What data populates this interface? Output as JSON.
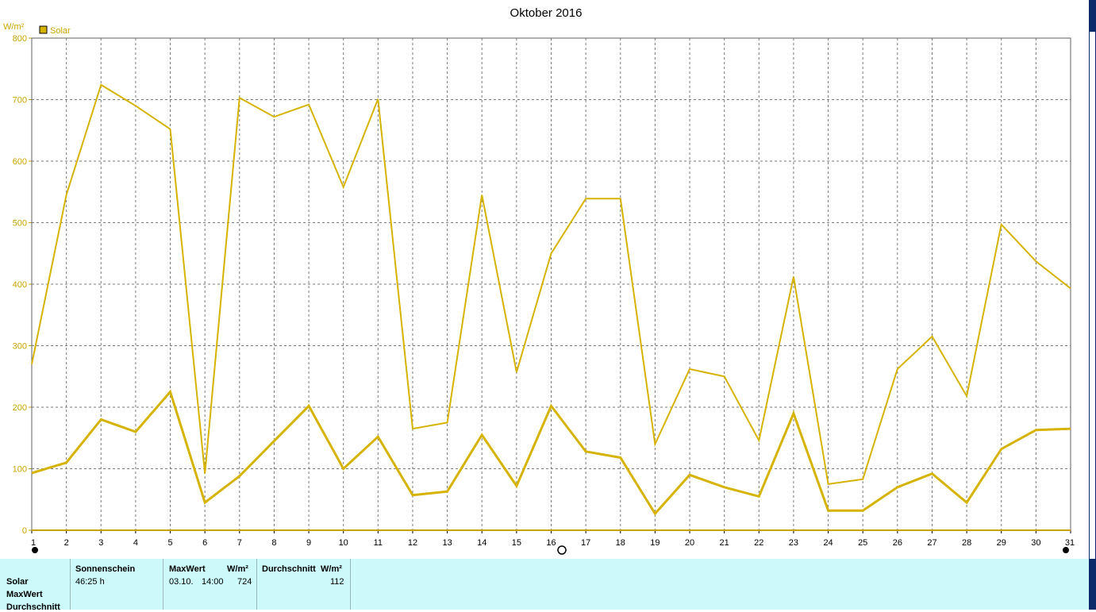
{
  "chart_data": {
    "type": "line",
    "title": "Oktober 2016",
    "ylabel": "W/m²",
    "xlabel": "",
    "ylim": [
      0,
      800
    ],
    "yticks": [
      0,
      100,
      200,
      300,
      400,
      500,
      600,
      700,
      800
    ],
    "x": [
      1,
      2,
      3,
      4,
      5,
      6,
      7,
      8,
      9,
      10,
      11,
      12,
      13,
      14,
      15,
      16,
      17,
      18,
      19,
      20,
      21,
      22,
      23,
      24,
      25,
      26,
      27,
      28,
      29,
      30,
      31
    ],
    "legend": {
      "label": "Solar",
      "position": "top-left",
      "color": "#d6b300"
    },
    "grid": true,
    "series": [
      {
        "name": "Solar",
        "role": "max",
        "values": [
          270,
          545,
          724,
          690,
          652,
          92,
          703,
          672,
          692,
          558,
          701,
          165,
          175,
          545,
          257,
          450,
          539,
          539,
          140,
          262,
          250,
          146,
          412,
          75,
          83,
          262,
          315,
          218,
          497,
          437,
          393
        ]
      },
      {
        "name": "Solar",
        "role": "average",
        "values": [
          93,
          110,
          180,
          160,
          225,
          45,
          88,
          145,
          202,
          100,
          152,
          57,
          63,
          155,
          72,
          202,
          128,
          118,
          27,
          90,
          70,
          55,
          190,
          32,
          32,
          70,
          92,
          45,
          132,
          163,
          165
        ]
      }
    ],
    "color": "#d6b300"
  },
  "info_table": {
    "row_labels": [
      "Solar",
      "MaxWert",
      "Durchschnitt"
    ],
    "sonnenschein": {
      "header": "Sonnenschein",
      "value": "46:25 h"
    },
    "maxwert": {
      "header": "MaxWert",
      "unit": "W/m²",
      "date": "03.10.",
      "time": "14:00",
      "value": "724"
    },
    "durchschnitt": {
      "header": "Durchschnitt",
      "unit": "W/m²",
      "value": "112"
    }
  }
}
